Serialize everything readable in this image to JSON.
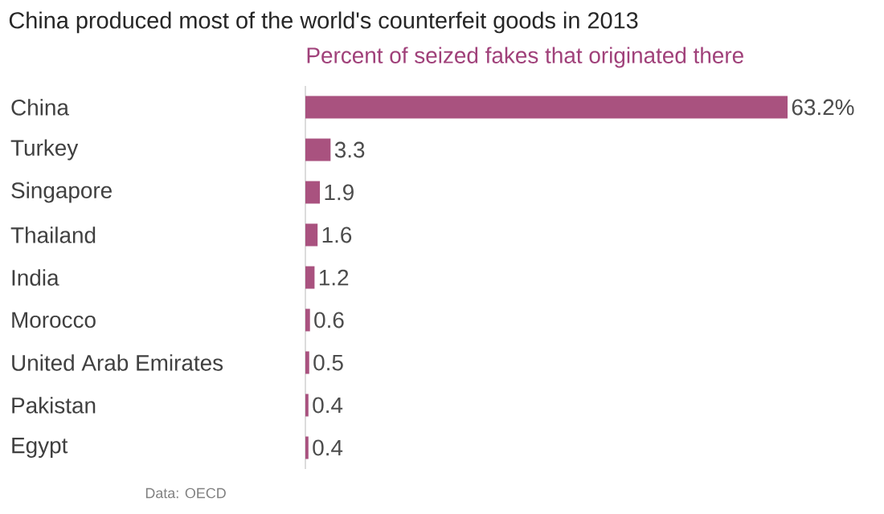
{
  "chart_data": {
    "type": "bar",
    "orientation": "horizontal",
    "title": "China produced most of the world's counterfeit goods in 2013",
    "subtitle": "Percent of seized fakes that originated there",
    "categories": [
      "China",
      "Turkey",
      "Singapore",
      "Thailand",
      "India",
      "Morocco",
      "United Arab Emirates",
      "Pakistan",
      "Egypt"
    ],
    "values": [
      63.2,
      3.3,
      1.9,
      1.6,
      1.2,
      0.6,
      0.5,
      0.4,
      0.4
    ],
    "value_labels": [
      "63.2%",
      "3.3",
      "1.9",
      "1.6",
      "1.2",
      "0.6",
      "0.5",
      "0.4",
      "0.4"
    ],
    "color": "#a9527f",
    "tick_labels": "y",
    "annotations": [
      "Data: OECD"
    ]
  }
}
